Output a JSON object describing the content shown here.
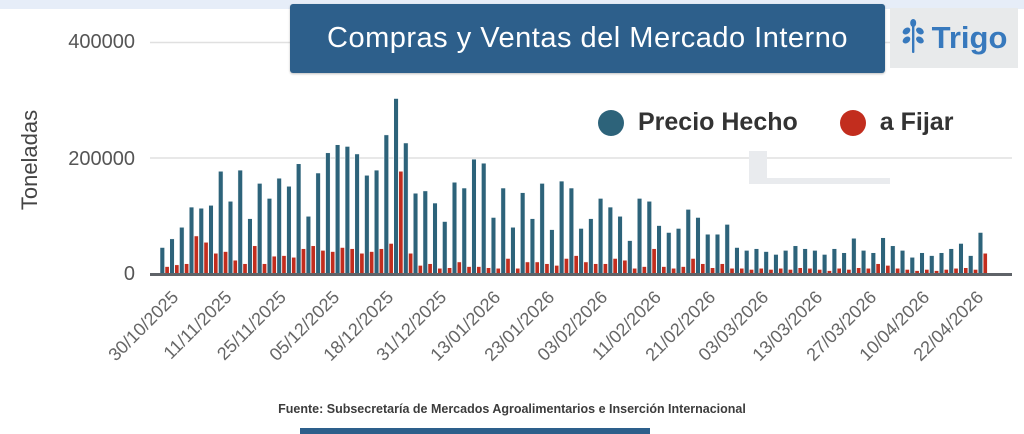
{
  "page": {
    "title": "Compras y Ventas del Mercado Interno",
    "commodity": "Trigo",
    "source_note": "Fuente: Subsecretaría de Mercados Agroalimentarios e Inserción Internacional"
  },
  "axis": {
    "y_label": "Toneladas",
    "y_ticks": [
      "400000",
      "200000",
      "0"
    ]
  },
  "legend": [
    {
      "label": "Precio Hecho",
      "color": "#2d637a"
    },
    {
      "label": "a Fijar",
      "color": "#c22d1e"
    }
  ],
  "colors": {
    "banner": "#2d5f8b",
    "badge_background": "#e8eaeb",
    "badge_text": "#3779bd",
    "gridline": "#e0e0e0",
    "axis_line": "#5f6368",
    "overlay_artifact": "#e9ebee"
  },
  "chart_data": {
    "type": "bar",
    "title": "Compras y Ventas del Mercado Interno",
    "xlabel": "",
    "ylabel": "Toneladas",
    "ylim": [
      0,
      400000
    ],
    "grid": "horizontal",
    "legend_position": "top-right",
    "x_labels": [
      "30/10/2025",
      "11/11/2025",
      "25/11/2025",
      "05/12/2025",
      "18/12/2025",
      "31/12/2025",
      "13/01/2026",
      "23/01/2026",
      "03/02/2026",
      "11/02/2026",
      "21/02/2026",
      "03/03/2026",
      "13/03/2026",
      "27/03/2026",
      "10/04/2026",
      "22/04/2026"
    ],
    "series": [
      {
        "name": "Precio Hecho",
        "color": "#2d637a",
        "values": [
          45000,
          60000,
          80000,
          115000,
          113000,
          118000,
          177000,
          125000,
          179000,
          95000,
          156000,
          130000,
          165000,
          151000,
          190000,
          99000,
          174000,
          209000,
          223000,
          220000,
          207000,
          170000,
          179000,
          240000,
          303000,
          226000,
          139000,
          143000,
          122000,
          90000,
          158000,
          148000,
          198000,
          191000,
          97000,
          148000,
          80000,
          140000,
          95000,
          156000,
          76000,
          160000,
          148000,
          78000,
          95000,
          130000,
          115000,
          99000,
          57000,
          130000,
          125000,
          83000,
          71000,
          78000,
          111000,
          97000,
          68000,
          68000,
          85000,
          45000,
          40000,
          43000,
          38000,
          33000,
          40000,
          48000,
          43000,
          40000,
          33000,
          43000,
          36000,
          61000,
          40000,
          36000,
          62000,
          48000,
          40000,
          28000,
          36000,
          31000,
          36000,
          43000,
          52000,
          31000,
          71000
        ]
      },
      {
        "name": "a Fijar",
        "color": "#c22d1e",
        "values": [
          12000,
          15000,
          17000,
          65000,
          54000,
          35000,
          38000,
          23000,
          17000,
          48000,
          17000,
          30000,
          31000,
          28000,
          43000,
          48000,
          40000,
          38000,
          45000,
          43000,
          35000,
          38000,
          43000,
          52000,
          177000,
          35000,
          14000,
          17000,
          9000,
          10000,
          20000,
          12000,
          12000,
          10000,
          9000,
          26000,
          9000,
          20000,
          20000,
          17000,
          14000,
          26000,
          31000,
          20000,
          17000,
          17000,
          26000,
          23000,
          9000,
          12000,
          43000,
          12000,
          9000,
          12000,
          26000,
          17000,
          10000,
          17000,
          9000,
          9000,
          7000,
          9000,
          7000,
          9000,
          7000,
          10000,
          9000,
          7000,
          5000,
          9000,
          7000,
          10000,
          9000,
          17000,
          14000,
          9000,
          7000,
          5000,
          7000,
          5000,
          7000,
          9000,
          10000,
          7000,
          35000
        ]
      }
    ]
  }
}
